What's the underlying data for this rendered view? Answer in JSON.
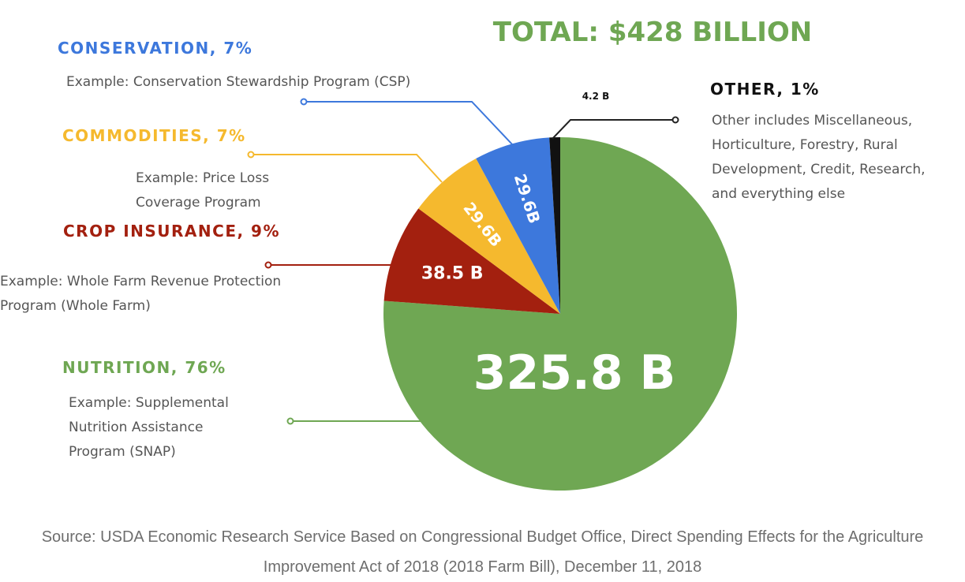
{
  "chart_data": {
    "type": "pie",
    "title": "TOTAL: $428 BILLION",
    "unit": "billion USD",
    "slices": [
      {
        "key": "nutrition",
        "heading": "NUTRITION, 76%",
        "value": 325.8,
        "percent": 76,
        "value_label": "325.8 B",
        "color": "#6fa753",
        "description": [
          "Example: Supplemental",
          "Nutrition Assistance",
          "Program (SNAP)"
        ]
      },
      {
        "key": "crop_insurance",
        "heading": "CROP INSURANCE, 9%",
        "value": 38.5,
        "percent": 9,
        "value_label": "38.5 B",
        "color": "#a3200f",
        "description": [
          "Example: Whole Farm Revenue Protection",
          "Program (Whole Farm)"
        ]
      },
      {
        "key": "commodities",
        "heading": "COMMODITIES, 7%",
        "value": 29.6,
        "percent": 7,
        "value_label": "29.6B",
        "color": "#f5b92e",
        "description": [
          "Example: Price Loss",
          "Coverage Program"
        ]
      },
      {
        "key": "conservation",
        "heading": "CONSERVATION, 7%",
        "value": 29.6,
        "percent": 7,
        "value_label": "29.6B",
        "color": "#3d78dc",
        "description": [
          "Example: Conservation Stewardship Program (CSP)"
        ]
      },
      {
        "key": "other",
        "heading": "OTHER, 1%",
        "value": 4.2,
        "percent": 1,
        "value_label": "4.2 B",
        "color": "#111111",
        "description": [
          "Other includes Miscellaneous,",
          "Horticulture, Forestry, Rural",
          "Development, Credit, Research,",
          "and everything else"
        ]
      }
    ]
  },
  "colors": {
    "title": "#6fa753",
    "description_text": "#555555",
    "source_text": "#6e6e6e"
  },
  "source": {
    "line1": "Source: USDA Economic Research Service Based on Congressional Budget Office, Direct Spending Effects for the Agriculture",
    "line2": "Improvement Act of 2018 (2018 Farm Bill), December 11, 2018"
  }
}
